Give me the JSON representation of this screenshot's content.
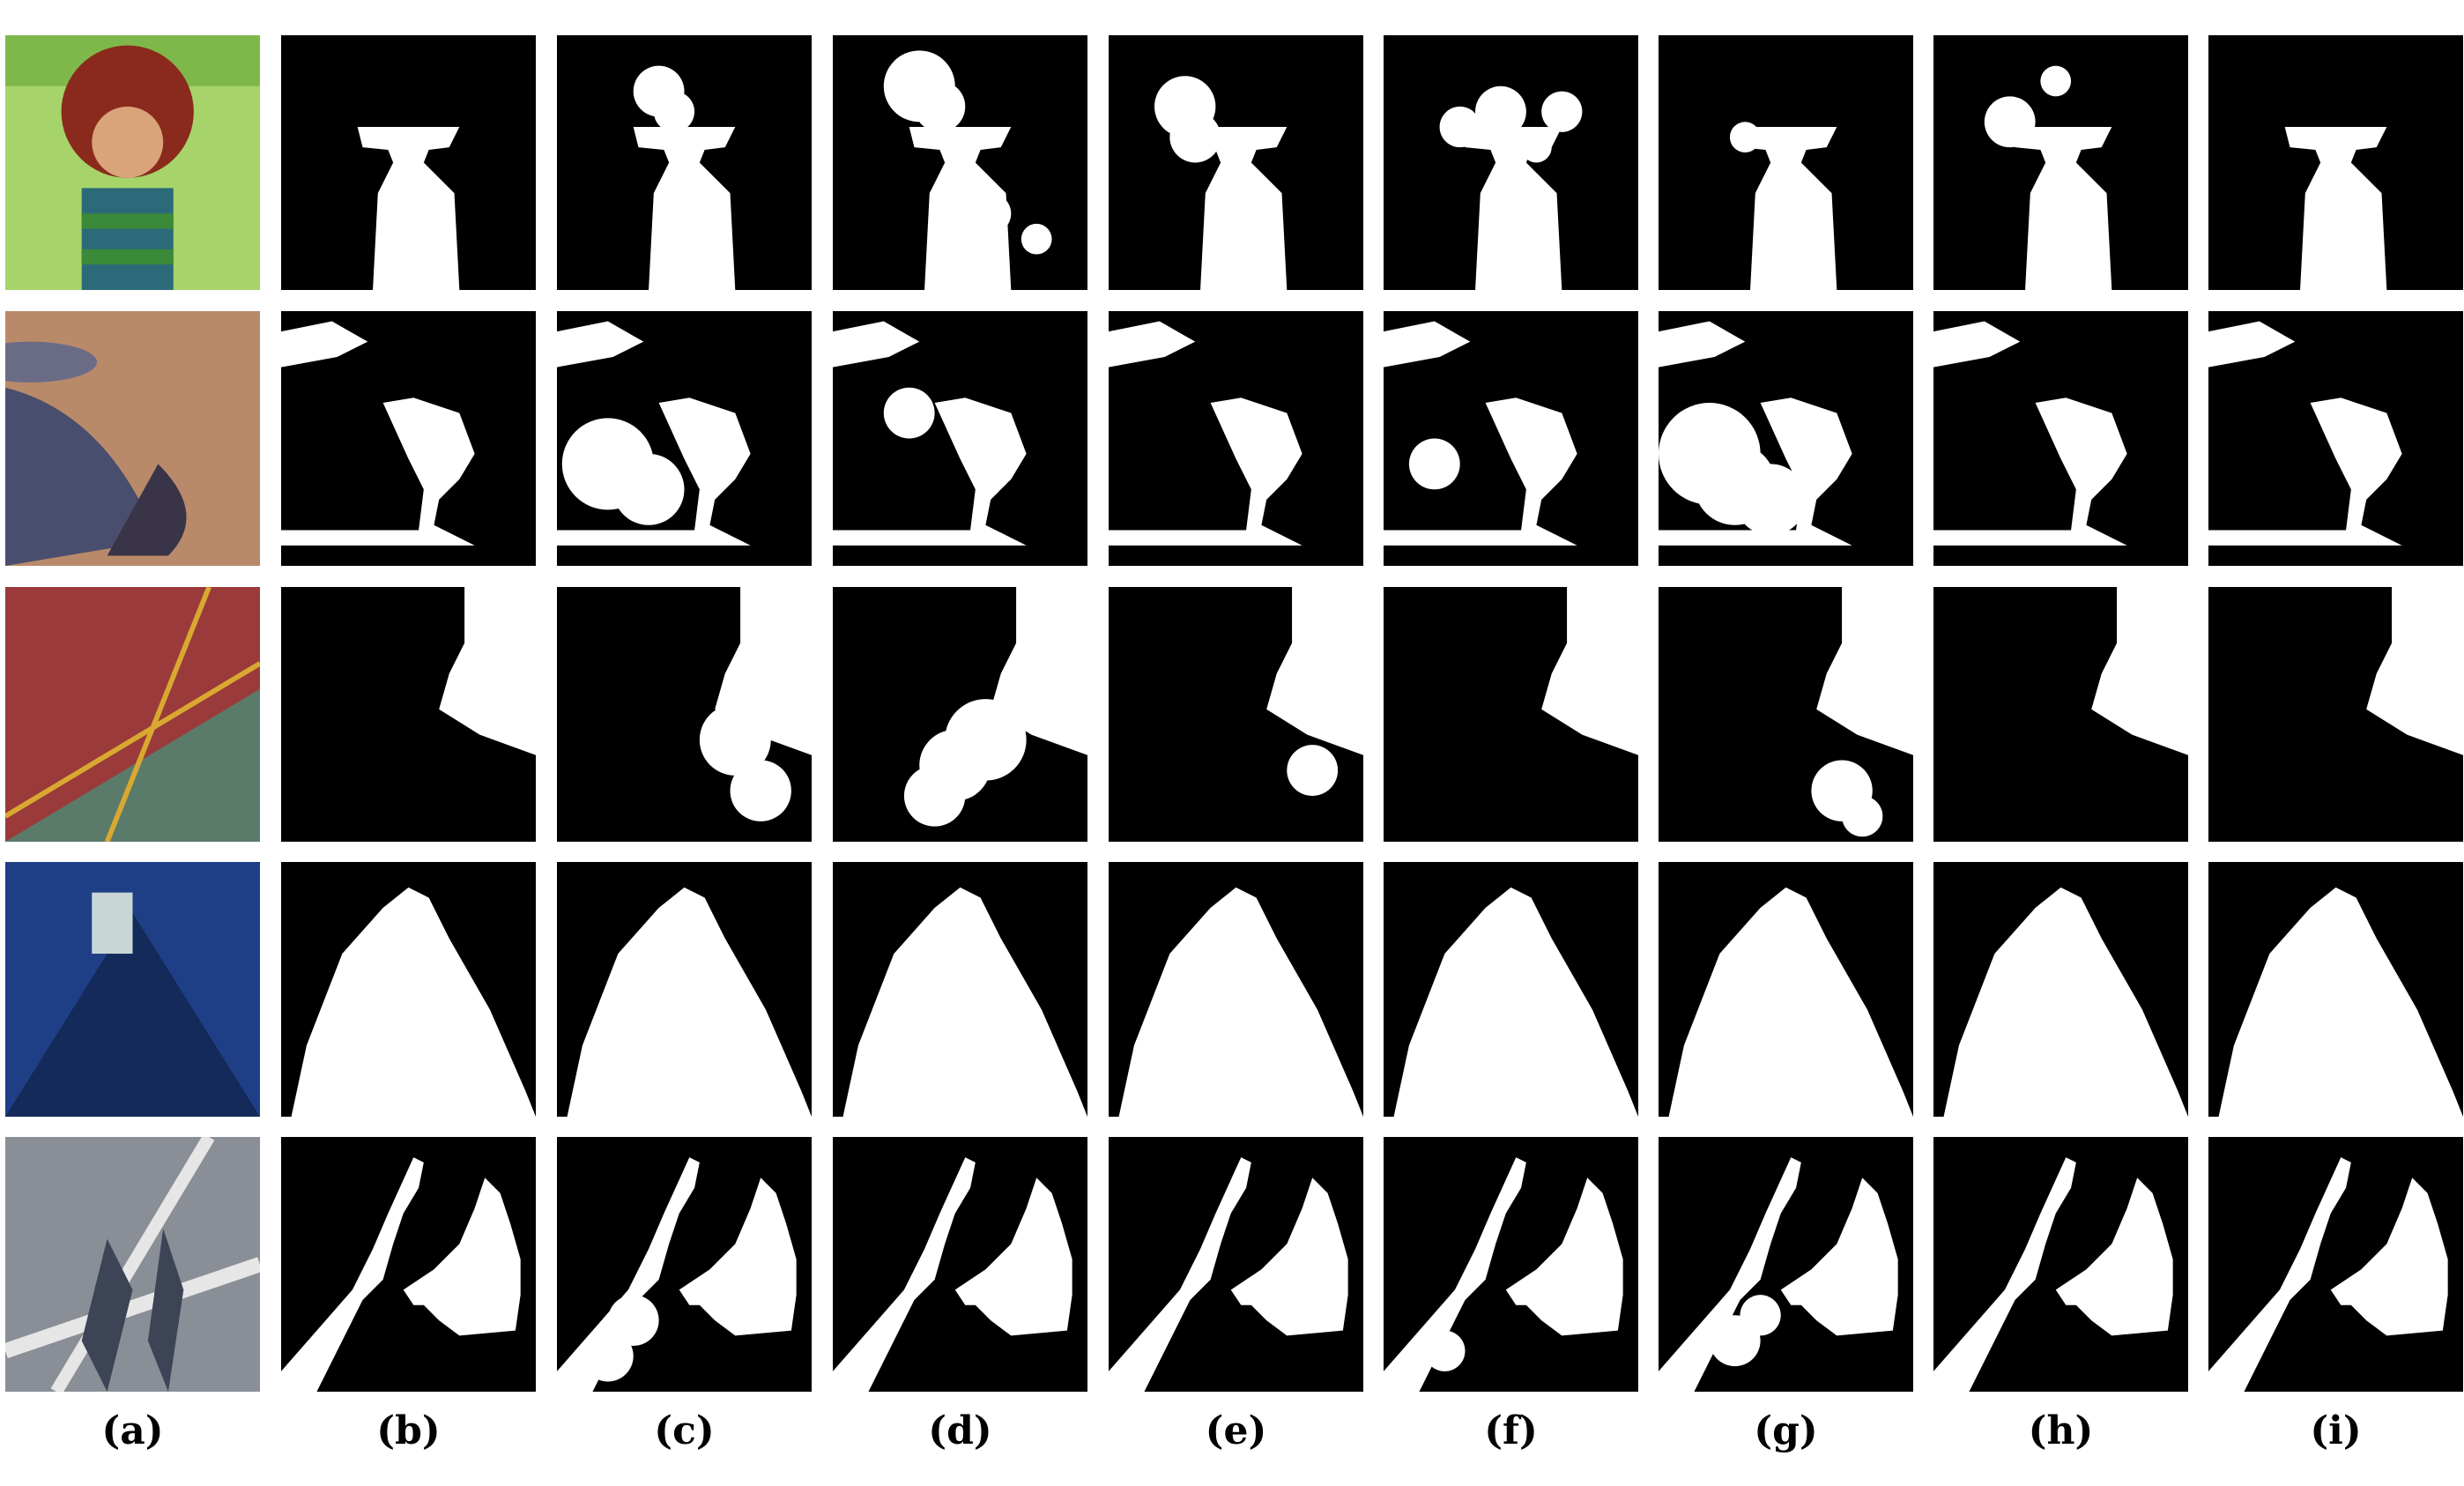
{
  "figure": {
    "column_labels": [
      "(a)",
      "(b)",
      "(c)",
      "(d)",
      "(e)",
      "(f)",
      "(g)",
      "(h)",
      "(i)"
    ],
    "rows": [
      {
        "scene": "cartoon-child",
        "input_colors": {
          "bg": "#7fb84a",
          "wall": "#a6d46a",
          "hair": "#8a2a1c",
          "skin": "#d9a47a",
          "shirt": "#2c6a7a",
          "stripe": "#3a8a3a"
        }
      },
      {
        "scene": "curved-sculpture",
        "input_colors": {
          "ground": "#b98a6a",
          "object": "#4a4e6e",
          "shadow": "#3a3448",
          "rim": "#6a6c86"
        }
      },
      {
        "scene": "court-floor",
        "input_colors": {
          "red": "#9a3a3a",
          "green": "#5a7a6a",
          "line": "#d9a830"
        }
      },
      {
        "scene": "blue-wall",
        "input_colors": {
          "wall": "#1e3f86",
          "shadow": "#142a5a",
          "sign": "#c9d6d6"
        }
      },
      {
        "scene": "road-shadow",
        "input_colors": {
          "road": "#8a8e96",
          "stripe": "#e6e6e6",
          "shadow": "#3c4456"
        }
      }
    ],
    "mask_colors": {
      "background": "#000000",
      "shadow": "#ffffff"
    }
  }
}
